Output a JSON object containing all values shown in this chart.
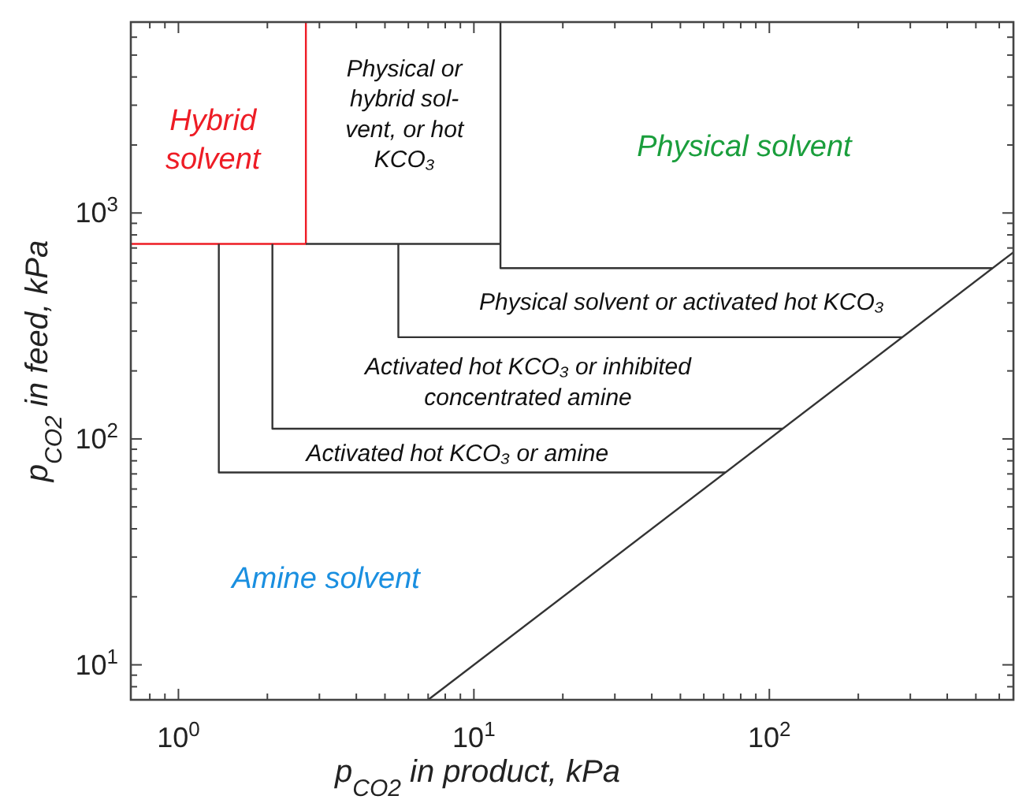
{
  "chart_data": {
    "type": "line",
    "log": "xy",
    "xlabel": "p$_{CO2}$ in product, kPa",
    "ylabel": "p$_{CO2}$ in feed, kPa",
    "xlim": [
      0.69,
      670
    ],
    "ylim": [
      7,
      7000
    ],
    "xticks": [
      {
        "value": 1,
        "label": "10$^{0}$"
      },
      {
        "value": 10,
        "label": "10$^{1}$"
      },
      {
        "value": 100,
        "label": "10$^{2}$"
      },
      {
        "value": 0.8,
        "label": null
      },
      {
        "value": 0.9,
        "label": null
      },
      {
        "value": 2,
        "label": null
      },
      {
        "value": 3,
        "label": null
      },
      {
        "value": 4,
        "label": null
      },
      {
        "value": 5,
        "label": null
      },
      {
        "value": 6,
        "label": null
      },
      {
        "value": 7,
        "label": null
      },
      {
        "value": 8,
        "label": null
      },
      {
        "value": 9,
        "label": null
      },
      {
        "value": 20,
        "label": null
      },
      {
        "value": 30,
        "label": null
      },
      {
        "value": 40,
        "label": null
      },
      {
        "value": 50,
        "label": null
      },
      {
        "value": 60,
        "label": null
      },
      {
        "value": 70,
        "label": null
      },
      {
        "value": 80,
        "label": null
      },
      {
        "value": 90,
        "label": null
      },
      {
        "value": 200,
        "label": null
      },
      {
        "value": 300,
        "label": null
      },
      {
        "value": 400,
        "label": null
      },
      {
        "value": 500,
        "label": null
      },
      {
        "value": 600,
        "label": null
      }
    ],
    "yticks": [
      {
        "value": 10,
        "label": "10$^{1}$"
      },
      {
        "value": 100,
        "label": "10$^{2}$"
      },
      {
        "value": 1000,
        "label": "10$^{3}$"
      },
      {
        "value": 8,
        "label": null
      },
      {
        "value": 9,
        "label": null
      },
      {
        "value": 20,
        "label": null
      },
      {
        "value": 30,
        "label": null
      },
      {
        "value": 40,
        "label": null
      },
      {
        "value": 50,
        "label": null
      },
      {
        "value": 60,
        "label": null
      },
      {
        "value": 70,
        "label": null
      },
      {
        "value": 80,
        "label": null
      },
      {
        "value": 90,
        "label": null
      },
      {
        "value": 200,
        "label": null
      },
      {
        "value": 300,
        "label": null
      },
      {
        "value": 400,
        "label": null
      },
      {
        "value": 500,
        "label": null
      },
      {
        "value": 600,
        "label": null
      },
      {
        "value": 700,
        "label": null
      },
      {
        "value": 800,
        "label": null
      },
      {
        "value": 900,
        "label": null
      },
      {
        "value": 2000,
        "label": null
      },
      {
        "value": 3000,
        "label": null
      },
      {
        "value": 4000,
        "label": null
      },
      {
        "value": 5000,
        "label": null
      },
      {
        "value": 6000,
        "label": null
      }
    ],
    "series": [
      {
        "color": "#ee1c25",
        "x": [
          0.69,
          2.7,
          2.7
        ],
        "values": [
          730,
          730,
          7000
        ]
      },
      {
        "color": "#333333",
        "x": [
          2.7,
          12.3
        ],
        "values": [
          730,
          730
        ]
      },
      {
        "color": "#333333",
        "x": [
          12.3,
          12.3,
          570
        ],
        "values": [
          7000,
          570,
          570
        ]
      },
      {
        "color": "#333333",
        "x": [
          5.55,
          5.55,
          282
        ],
        "values": [
          730,
          282,
          282
        ]
      },
      {
        "color": "#333333",
        "x": [
          2.08,
          2.08,
          111
        ],
        "values": [
          730,
          111,
          111
        ]
      },
      {
        "color": "#333333",
        "x": [
          1.37,
          1.37,
          71
        ],
        "values": [
          730,
          71,
          71
        ]
      },
      {
        "color": "#333333",
        "x": [
          7,
          670
        ],
        "values": [
          7,
          670
        ]
      }
    ],
    "annotations": [
      "Hybrid\nsolvent",
      "Physical or\nhybrid sol-\nvent, or hot\nKCO₃",
      "Physical solvent",
      "Physical solvent or activated hot KCO₃",
      "Activated hot KCO₃ or inhibited\nconcentrated amine",
      "Activated hot KCO₃ or amine",
      "Amine solvent"
    ]
  }
}
